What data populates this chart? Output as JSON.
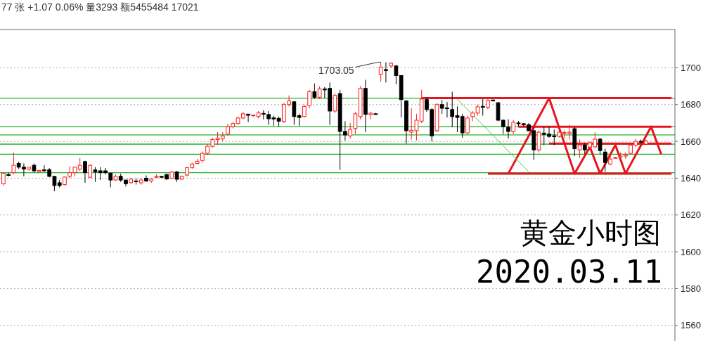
{
  "chart_data": {
    "type": "candlestick",
    "title": "黄金小时图",
    "subtitle": "2020.03.11",
    "annotations": [
      "77 张 +1.07 0.06% 量3293 额5455484 17021",
      "1703.05"
    ],
    "categories": [
      null,
      null,
      null,
      null,
      null,
      null,
      null,
      null,
      null,
      null,
      null,
      null,
      null,
      null,
      null,
      null,
      null,
      null,
      null,
      null,
      null,
      null,
      null,
      null,
      null,
      null,
      null,
      null,
      null,
      null,
      null,
      null,
      null,
      null,
      null,
      null,
      null,
      null,
      null,
      null,
      null,
      null,
      null,
      null,
      null,
      null,
      null,
      null,
      null,
      null,
      null,
      null,
      null,
      null,
      null,
      null,
      null,
      null,
      null,
      null,
      null,
      null,
      null,
      null,
      null,
      null,
      null,
      null,
      null,
      null,
      null,
      null,
      null,
      null,
      null,
      null,
      null,
      null,
      null,
      null,
      null,
      null,
      null,
      null,
      null,
      null,
      null,
      null,
      null,
      null,
      null,
      null,
      null,
      null,
      null,
      null,
      null,
      null,
      null,
      null,
      null,
      null,
      null,
      null,
      null,
      null,
      null,
      null,
      null,
      null,
      null,
      null,
      null,
      null,
      null,
      null,
      null,
      null,
      null,
      null,
      null,
      null,
      null,
      null,
      null,
      null,
      null,
      null,
      null,
      null,
      null,
      null
    ],
    "ohlc": [
      [
        1637,
        1643,
        1636,
        1642.7
      ],
      [
        1642,
        1643,
        1641,
        1641.5
      ],
      [
        1643,
        1654,
        1642,
        1647
      ],
      [
        1648,
        1649,
        1645,
        1646
      ],
      [
        1646,
        1648,
        1641,
        1645
      ],
      [
        1645,
        1646,
        1644,
        1646
      ],
      [
        1647,
        1648,
        1643,
        1644
      ],
      [
        1643.5,
        1644.5,
        1643,
        1644.2
      ],
      [
        1644.5,
        1647,
        1643.5,
        1644
      ],
      [
        1644.6,
        1645.5,
        1640.5,
        1641
      ],
      [
        1641,
        1641,
        1633,
        1636
      ],
      [
        1637.5,
        1639,
        1635,
        1636
      ],
      [
        1636.5,
        1641,
        1636,
        1640.6
      ],
      [
        1641,
        1646.5,
        1640,
        1643
      ],
      [
        1643,
        1646.5,
        1641,
        1646
      ],
      [
        1645,
        1651,
        1644,
        1647
      ],
      [
        1649,
        1649.5,
        1637.5,
        1643
      ],
      [
        1640.5,
        1647.5,
        1640,
        1647
      ],
      [
        1644.5,
        1646,
        1638,
        1643.5
      ],
      [
        1644,
        1646,
        1639,
        1643
      ],
      [
        1644,
        1645.5,
        1642,
        1643
      ],
      [
        1642.7,
        1643,
        1635,
        1639
      ],
      [
        1639,
        1642,
        1638.5,
        1641
      ],
      [
        1641,
        1642.5,
        1638,
        1639
      ],
      [
        1639,
        1639,
        1635.5,
        1637
      ],
      [
        1637.5,
        1640,
        1637,
        1639.5
      ],
      [
        1638.5,
        1640,
        1636.5,
        1638.2
      ],
      [
        1637.5,
        1640,
        1636.5,
        1639
      ],
      [
        1640,
        1641.5,
        1638,
        1638.5
      ],
      [
        1638.5,
        1640,
        1637.5,
        1639.5
      ],
      [
        1640.5,
        1642,
        1640,
        1641
      ],
      [
        1641,
        1641.2,
        1640,
        1640.5
      ],
      [
        1642,
        1642.3,
        1639,
        1639.6
      ],
      [
        1640,
        1644,
        1639.5,
        1643.3
      ],
      [
        1643.4,
        1644,
        1638,
        1639.4
      ],
      [
        1639.5,
        1641.5,
        1639,
        1641
      ],
      [
        1641.7,
        1646,
        1641,
        1645.7
      ],
      [
        1645.8,
        1648.5,
        1645,
        1647.7
      ],
      [
        1648,
        1650.5,
        1647.5,
        1649.2
      ],
      [
        1649.6,
        1654.5,
        1648.5,
        1653.5
      ],
      [
        1653.5,
        1658.5,
        1652.5,
        1657.3
      ],
      [
        1657.3,
        1662,
        1656.5,
        1661
      ],
      [
        1661,
        1665,
        1658,
        1661.8
      ],
      [
        1661.5,
        1665,
        1660,
        1663
      ],
      [
        1664,
        1669.5,
        1663,
        1668
      ],
      [
        1668,
        1670.5,
        1667,
        1669.7
      ],
      [
        1669.7,
        1673.5,
        1669,
        1672.7
      ],
      [
        1672.7,
        1676,
        1672,
        1675
      ],
      [
        1674.8,
        1675,
        1670.5,
        1674.2
      ],
      [
        1674,
        1674.5,
        1673.5,
        1674.3
      ],
      [
        1673.5,
        1676.5,
        1672.5,
        1675.5
      ],
      [
        1675.2,
        1677,
        1672,
        1674.8
      ],
      [
        1674.6,
        1676.5,
        1669,
        1672.3
      ],
      [
        1672.8,
        1674,
        1668.5,
        1672.2
      ],
      [
        1672.5,
        1673.5,
        1668,
        1671
      ],
      [
        1670.8,
        1681,
        1670,
        1680
      ],
      [
        1680,
        1685,
        1679,
        1682
      ],
      [
        1681.5,
        1682,
        1669,
        1673.5
      ],
      [
        1674,
        1675,
        1668.5,
        1673
      ],
      [
        1673.5,
        1680,
        1673,
        1679
      ],
      [
        1679.5,
        1688,
        1678,
        1687
      ],
      [
        1687,
        1691.5,
        1683,
        1684
      ],
      [
        1684,
        1690,
        1683,
        1688.5
      ],
      [
        1688.5,
        1689.5,
        1683.5,
        1688
      ],
      [
        1688.8,
        1692,
        1669,
        1676.5
      ],
      [
        1676.5,
        1686,
        1675.5,
        1685
      ],
      [
        1686,
        1688,
        1644.5,
        1665.4
      ],
      [
        1665.4,
        1671,
        1660.5,
        1663.5
      ],
      [
        1663,
        1670,
        1661.5,
        1666.5
      ],
      [
        1667,
        1676,
        1664,
        1675
      ],
      [
        1673.5,
        1690,
        1672,
        1688.8
      ],
      [
        1688.8,
        1693.5,
        1665,
        1674.7
      ],
      [
        1674.6,
        1676,
        1672,
        1675.3
      ],
      [
        1675,
        1675.5,
        1674.5,
        1674.8
      ],
      [
        1696.5,
        1703.05,
        1692.5,
        1700.4
      ],
      [
        1699,
        1703,
        1692,
        1698.5
      ],
      [
        1701,
        1703,
        1700,
        1702.5
      ],
      [
        1701,
        1701.5,
        1691,
        1695.8
      ],
      [
        1695.8,
        1696,
        1673,
        1682.7
      ],
      [
        1682,
        1682.5,
        1658.8,
        1665.8
      ],
      [
        1665,
        1678,
        1661,
        1666
      ],
      [
        1665.8,
        1675,
        1660.5,
        1671.5
      ],
      [
        1671,
        1688,
        1670,
        1683
      ],
      [
        1682.7,
        1684,
        1676,
        1677.3
      ],
      [
        1677.3,
        1678,
        1660,
        1663
      ],
      [
        1665.8,
        1681,
        1665,
        1680
      ],
      [
        1680,
        1682.5,
        1675,
        1678
      ],
      [
        1678.2,
        1681.5,
        1673,
        1677.8
      ],
      [
        1677.3,
        1687,
        1667.7,
        1673.5
      ],
      [
        1674,
        1679,
        1665,
        1673
      ],
      [
        1673.5,
        1675,
        1662,
        1664.6
      ],
      [
        1664.6,
        1674,
        1664,
        1672.7
      ],
      [
        1673.5,
        1676.5,
        1671,
        1675.4
      ],
      [
        1675.4,
        1680,
        1674,
        1678.8
      ],
      [
        1679,
        1683,
        1674,
        1678.5
      ],
      [
        1678.5,
        1683,
        1677.5,
        1682.3
      ],
      [
        1682.5,
        1682.6,
        1681.7,
        1682
      ],
      [
        1681,
        1681.5,
        1671,
        1671.5
      ],
      [
        1671.5,
        1672,
        1664,
        1668
      ],
      [
        1667.7,
        1672,
        1661.5,
        1665.4
      ],
      [
        1665.4,
        1671.5,
        1664,
        1670.4
      ],
      [
        1670,
        1671,
        1668,
        1669.6
      ],
      [
        1669.6,
        1670,
        1668,
        1669
      ],
      [
        1669,
        1670,
        1665.5,
        1665.8
      ],
      [
        1665.8,
        1668,
        1650,
        1655.4
      ],
      [
        1655.4,
        1666,
        1654,
        1665
      ],
      [
        1664.5,
        1668,
        1658,
        1663.8
      ],
      [
        1664,
        1668,
        1662,
        1662.7
      ],
      [
        1663,
        1666.5,
        1658,
        1662.5
      ],
      [
        1662.7,
        1666,
        1662,
        1665
      ],
      [
        1664.5,
        1666,
        1662,
        1664.8
      ],
      [
        1664.5,
        1669,
        1661,
        1665
      ],
      [
        1666.9,
        1668,
        1652,
        1656
      ],
      [
        1655.4,
        1661,
        1651,
        1658
      ],
      [
        1658,
        1659,
        1653,
        1655.4
      ],
      [
        1656.9,
        1660,
        1655,
        1659.2
      ],
      [
        1657,
        1665,
        1656.5,
        1661.2
      ],
      [
        1661.2,
        1662,
        1653,
        1655
      ],
      [
        1654.2,
        1656,
        1643.5,
        1648.5
      ],
      [
        1647.7,
        1652,
        1647,
        1650.4
      ],
      [
        1650.8,
        1651.5,
        1650.6,
        1651.2
      ],
      [
        1651.5,
        1654,
        1651,
        1652
      ],
      [
        1652,
        1654,
        1650.5,
        1652.7
      ],
      [
        1653.5,
        1659,
        1653,
        1658
      ],
      [
        1658,
        1661.5,
        1657,
        1660
      ],
      [
        1660,
        1661,
        1659,
        1659.6
      ],
      [
        1658.5,
        1661,
        1658,
        1660.2
      ],
      null,
      null,
      null,
      null,
      null
    ],
    "series": [
      {
        "type": "line",
        "color": "#e8141e",
        "values": [
          null,
          null,
          null,
          null,
          null,
          null,
          null,
          null,
          null,
          null,
          null,
          null,
          null,
          null,
          null,
          null,
          null,
          null,
          null,
          null,
          null,
          null,
          null,
          null,
          null,
          null,
          null,
          null,
          null,
          null,
          null,
          null,
          null,
          null,
          null,
          null,
          null,
          null,
          null,
          null,
          null,
          null,
          null,
          null,
          null,
          null,
          null,
          null,
          null,
          null,
          null,
          null,
          null,
          null,
          null,
          null,
          null,
          null,
          null,
          null,
          null,
          null,
          null,
          null,
          null,
          null,
          null,
          null,
          null,
          null,
          null,
          null,
          null,
          null,
          null,
          null,
          null,
          null,
          null,
          null,
          null,
          null,
          1683.5,
          1683.5,
          1683.5,
          1683.5,
          1683.5,
          1683.5,
          1683.5,
          1683.5,
          1683.5,
          1683.5,
          1683.5,
          1683.5,
          1683.5,
          1683.5,
          1683.5,
          1683.5,
          1683.5,
          1683.5,
          1683.5,
          1683.5,
          1683.5,
          1683.5,
          1683.5,
          1683.5,
          1683.5,
          1683.5,
          1683.5,
          1683.5,
          1683.5,
          1683.5,
          1683.5,
          1683.5,
          1683.5,
          1683.5,
          1683.5,
          1683.5,
          1683.5,
          1683.5,
          1683.5,
          1683.5,
          1683.5,
          1683.5,
          1683.5,
          1683.5,
          1683.5,
          1683.5,
          1683.5,
          1683.5,
          1683.5,
          1683.5
        ]
      },
      {
        "type": "line",
        "color": "#e8141e",
        "values": [
          null,
          null,
          null,
          null,
          null,
          null,
          null,
          null,
          null,
          null,
          null,
          null,
          null,
          null,
          null,
          null,
          null,
          null,
          null,
          null,
          null,
          null,
          null,
          null,
          null,
          null,
          null,
          null,
          null,
          null,
          null,
          null,
          null,
          null,
          null,
          null,
          null,
          null,
          null,
          null,
          null,
          null,
          null,
          null,
          null,
          null,
          null,
          null,
          null,
          null,
          null,
          null,
          null,
          null,
          null,
          null,
          null,
          null,
          null,
          null,
          null,
          null,
          null,
          null,
          null,
          null,
          null,
          null,
          null,
          null,
          null,
          null,
          null,
          null,
          null,
          null,
          null,
          null,
          null,
          null,
          null,
          null,
          null,
          null,
          null,
          null,
          null,
          null,
          null,
          null,
          null,
          null,
          null,
          null,
          null,
          null,
          null,
          null,
          null,
          null,
          null,
          1668,
          1668,
          1668,
          1668,
          1668,
          1668,
          1668,
          1668,
          1668,
          1668,
          1668,
          1668,
          1668,
          1668,
          1668,
          1668,
          1668,
          1668,
          1668,
          1668,
          1668,
          1668,
          1668,
          1668,
          1668,
          1668,
          1668,
          1668,
          1668,
          1668,
          1668
        ]
      },
      {
        "type": "line",
        "color": "#e8141e",
        "values": [
          null,
          null,
          null,
          null,
          null,
          null,
          null,
          null,
          null,
          null,
          null,
          null,
          null,
          null,
          null,
          null,
          null,
          null,
          null,
          null,
          null,
          null,
          null,
          null,
          null,
          null,
          null,
          null,
          null,
          null,
          null,
          null,
          null,
          null,
          null,
          null,
          null,
          null,
          null,
          null,
          null,
          null,
          null,
          null,
          null,
          null,
          null,
          null,
          null,
          null,
          null,
          null,
          null,
          null,
          null,
          null,
          null,
          null,
          null,
          null,
          null,
          null,
          null,
          null,
          null,
          null,
          null,
          null,
          null,
          null,
          null,
          null,
          null,
          null,
          null,
          null,
          null,
          null,
          null,
          null,
          null,
          null,
          null,
          null,
          null,
          null,
          null,
          null,
          null,
          null,
          null,
          null,
          null,
          null,
          null,
          null,
          null,
          null,
          null,
          null,
          null,
          null,
          null,
          null,
          null,
          null,
          null,
          1658.8,
          1658.8,
          1658.8,
          1658.8,
          1658.8,
          1658.8,
          1658.8,
          1658.8,
          1658.8,
          1658.8,
          1658.8,
          1658.8,
          1658.8,
          1658.8,
          1658.8,
          1658.8,
          1658.8,
          1658.8,
          1658.8,
          1658.8,
          1658.8,
          1658.8,
          1658.8,
          1658.8,
          1658.8
        ]
      },
      {
        "type": "line",
        "color": "#e8141e",
        "values": [
          null,
          null,
          null,
          null,
          null,
          null,
          null,
          null,
          null,
          null,
          null,
          null,
          null,
          null,
          null,
          null,
          null,
          null,
          null,
          null,
          null,
          null,
          null,
          null,
          null,
          null,
          null,
          null,
          null,
          null,
          null,
          null,
          null,
          null,
          null,
          null,
          null,
          null,
          null,
          null,
          null,
          null,
          null,
          null,
          null,
          null,
          null,
          null,
          null,
          null,
          null,
          null,
          null,
          null,
          null,
          null,
          null,
          null,
          null,
          null,
          null,
          null,
          null,
          null,
          null,
          null,
          null,
          null,
          null,
          null,
          null,
          null,
          null,
          null,
          null,
          null,
          null,
          null,
          null,
          null,
          null,
          null,
          null,
          null,
          null,
          null,
          null,
          null,
          null,
          null,
          null,
          null,
          null,
          null,
          null,
          1642.5,
          1642.5,
          1642.5,
          1642.5,
          1642.5,
          1642.5,
          1642.5,
          1642.5,
          1642.5,
          1642.5,
          1642.5,
          1642.5,
          1642.5,
          1642.5,
          1642.5,
          1642.5,
          1642.5,
          1642.5,
          1642.5,
          1642.5,
          1642.5,
          1642.5,
          1642.5,
          1642.5,
          1642.5,
          1642.5,
          1642.5,
          1642.5,
          1642.5,
          1642.5,
          1642.5,
          1642.5,
          1642.5,
          1642.5,
          1642.5,
          1642.5,
          1642.5
        ]
      },
      {
        "type": "line",
        "color": "#e8141e",
        "values": [
          null,
          null,
          null,
          null,
          null,
          null,
          null,
          null,
          null,
          null,
          null,
          null,
          null,
          null,
          null,
          null,
          null,
          null,
          null,
          null,
          null,
          null,
          null,
          null,
          null,
          null,
          null,
          null,
          null,
          null,
          null,
          null,
          null,
          null,
          null,
          null,
          null,
          null,
          null,
          null,
          null,
          null,
          null,
          null,
          null,
          null,
          null,
          null,
          null,
          null,
          null,
          null,
          null,
          null,
          null,
          null,
          null,
          null,
          null,
          null,
          null,
          null,
          null,
          null,
          null,
          null,
          null,
          null,
          null,
          null,
          null,
          null,
          null,
          null,
          null,
          null,
          null,
          null,
          null,
          null,
          null,
          null,
          null,
          null,
          null,
          null,
          null,
          null,
          null,
          null,
          null,
          null,
          null,
          null,
          null,
          null,
          null,
          null,
          null,
          1642.5,
          null,
          null,
          null,
          null,
          null,
          null,
          null,
          1683.5,
          null,
          null,
          null,
          null,
          1642.5,
          null,
          null,
          1657,
          null,
          1642.5,
          null,
          null,
          1658,
          null,
          1642.5,
          null,
          null,
          null,
          null,
          1668,
          null,
          1653,
          null,
          null
        ]
      },
      {
        "type": "line",
        "color": "#4ccc4c",
        "values": [
          null,
          null,
          null,
          null,
          null,
          null,
          null,
          null,
          null,
          null,
          null,
          null,
          null,
          null,
          null,
          null,
          null,
          null,
          null,
          null,
          null,
          null,
          null,
          null,
          null,
          null,
          null,
          null,
          null,
          null,
          null,
          null,
          null,
          null,
          null,
          null,
          null,
          null,
          null,
          null,
          null,
          null,
          null,
          null,
          null,
          null,
          null,
          null,
          null,
          null,
          null,
          null,
          null,
          null,
          null,
          null,
          null,
          null,
          null,
          null,
          null,
          null,
          null,
          null,
          null,
          null,
          null,
          null,
          null,
          null,
          null,
          null,
          null,
          null,
          null,
          null,
          null,
          null,
          null,
          null,
          null,
          null,
          null,
          null,
          null,
          null,
          null,
          null,
          null,
          1683,
          null,
          null,
          null,
          null,
          null,
          null,
          null,
          null,
          null,
          null,
          null,
          null,
          null,
          1643.5,
          null,
          null,
          null,
          null,
          null,
          null,
          null,
          null,
          null,
          null,
          null,
          null,
          null,
          null,
          null,
          null,
          null,
          null,
          null,
          null,
          null,
          null,
          null,
          null,
          null,
          null,
          null,
          null
        ]
      }
    ],
    "ref_lines": [
      {
        "axis": "y",
        "value": 1683.5,
        "color": "#22b022"
      },
      {
        "axis": "y",
        "value": 1668,
        "color": "#22b022"
      },
      {
        "axis": "y",
        "value": 1663.5,
        "color": "#22b022"
      },
      {
        "axis": "y",
        "value": 1658.5,
        "color": "#22b022"
      },
      {
        "axis": "y",
        "value": 1653,
        "color": "#22b022"
      },
      {
        "axis": "y",
        "value": 1643,
        "color": "#22b022"
      }
    ],
    "ylim": [
      1551.5,
      1720.8
    ],
    "yticks": [
      1560,
      1580,
      1600,
      1620,
      1640,
      1660,
      1680,
      1700
    ],
    "grid": "y",
    "tick_labels": "y"
  }
}
